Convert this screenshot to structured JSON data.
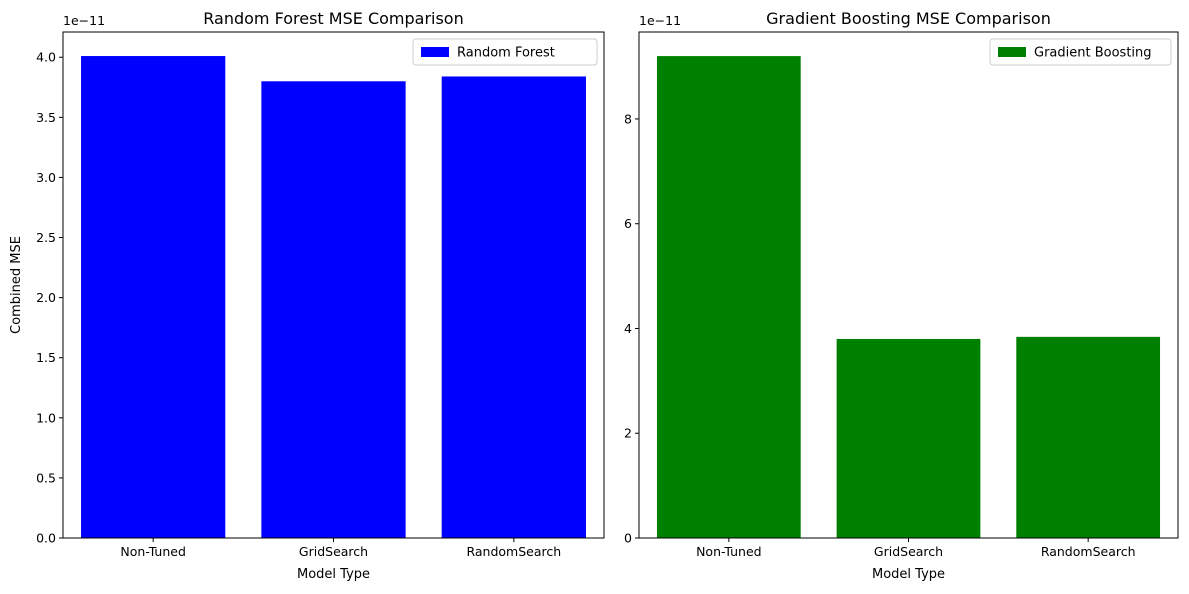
{
  "chart_data": [
    {
      "type": "bar",
      "title": "Random Forest MSE Comparison",
      "xlabel": "Model Type",
      "ylabel": "Combined MSE",
      "offset_text": "1e−11",
      "categories": [
        "Non-Tuned",
        "GridSearch",
        "RandomSearch"
      ],
      "series": [
        {
          "name": "Random Forest",
          "values": [
            4.01e-11,
            3.8e-11,
            3.84e-11
          ],
          "color": "#0000ff"
        }
      ],
      "ylim": [
        0,
        4.21e-11
      ],
      "yticks": [
        "0.0",
        "0.5",
        "1.0",
        "1.5",
        "2.0",
        "2.5",
        "3.0",
        "3.5",
        "4.0"
      ],
      "ytick_values": [
        0,
        5e-12,
        1e-11,
        1.5e-11,
        2e-11,
        2.5e-11,
        3e-11,
        3.5e-11,
        4e-11
      ],
      "grid": false,
      "legend": "top-right"
    },
    {
      "type": "bar",
      "title": "Gradient Boosting MSE Comparison",
      "xlabel": "Model Type",
      "ylabel": "",
      "offset_text": "1e−11",
      "categories": [
        "Non-Tuned",
        "GridSearch",
        "RandomSearch"
      ],
      "series": [
        {
          "name": "Gradient Boosting",
          "values": [
            9.2e-11,
            3.8e-11,
            3.84e-11
          ],
          "color": "#008000"
        }
      ],
      "ylim": [
        0,
        9.66e-11
      ],
      "yticks": [
        "0",
        "2",
        "4",
        "6",
        "8"
      ],
      "ytick_values": [
        0,
        2e-11,
        4e-11,
        6e-11,
        8e-11
      ],
      "grid": false,
      "legend": "top-right"
    }
  ]
}
